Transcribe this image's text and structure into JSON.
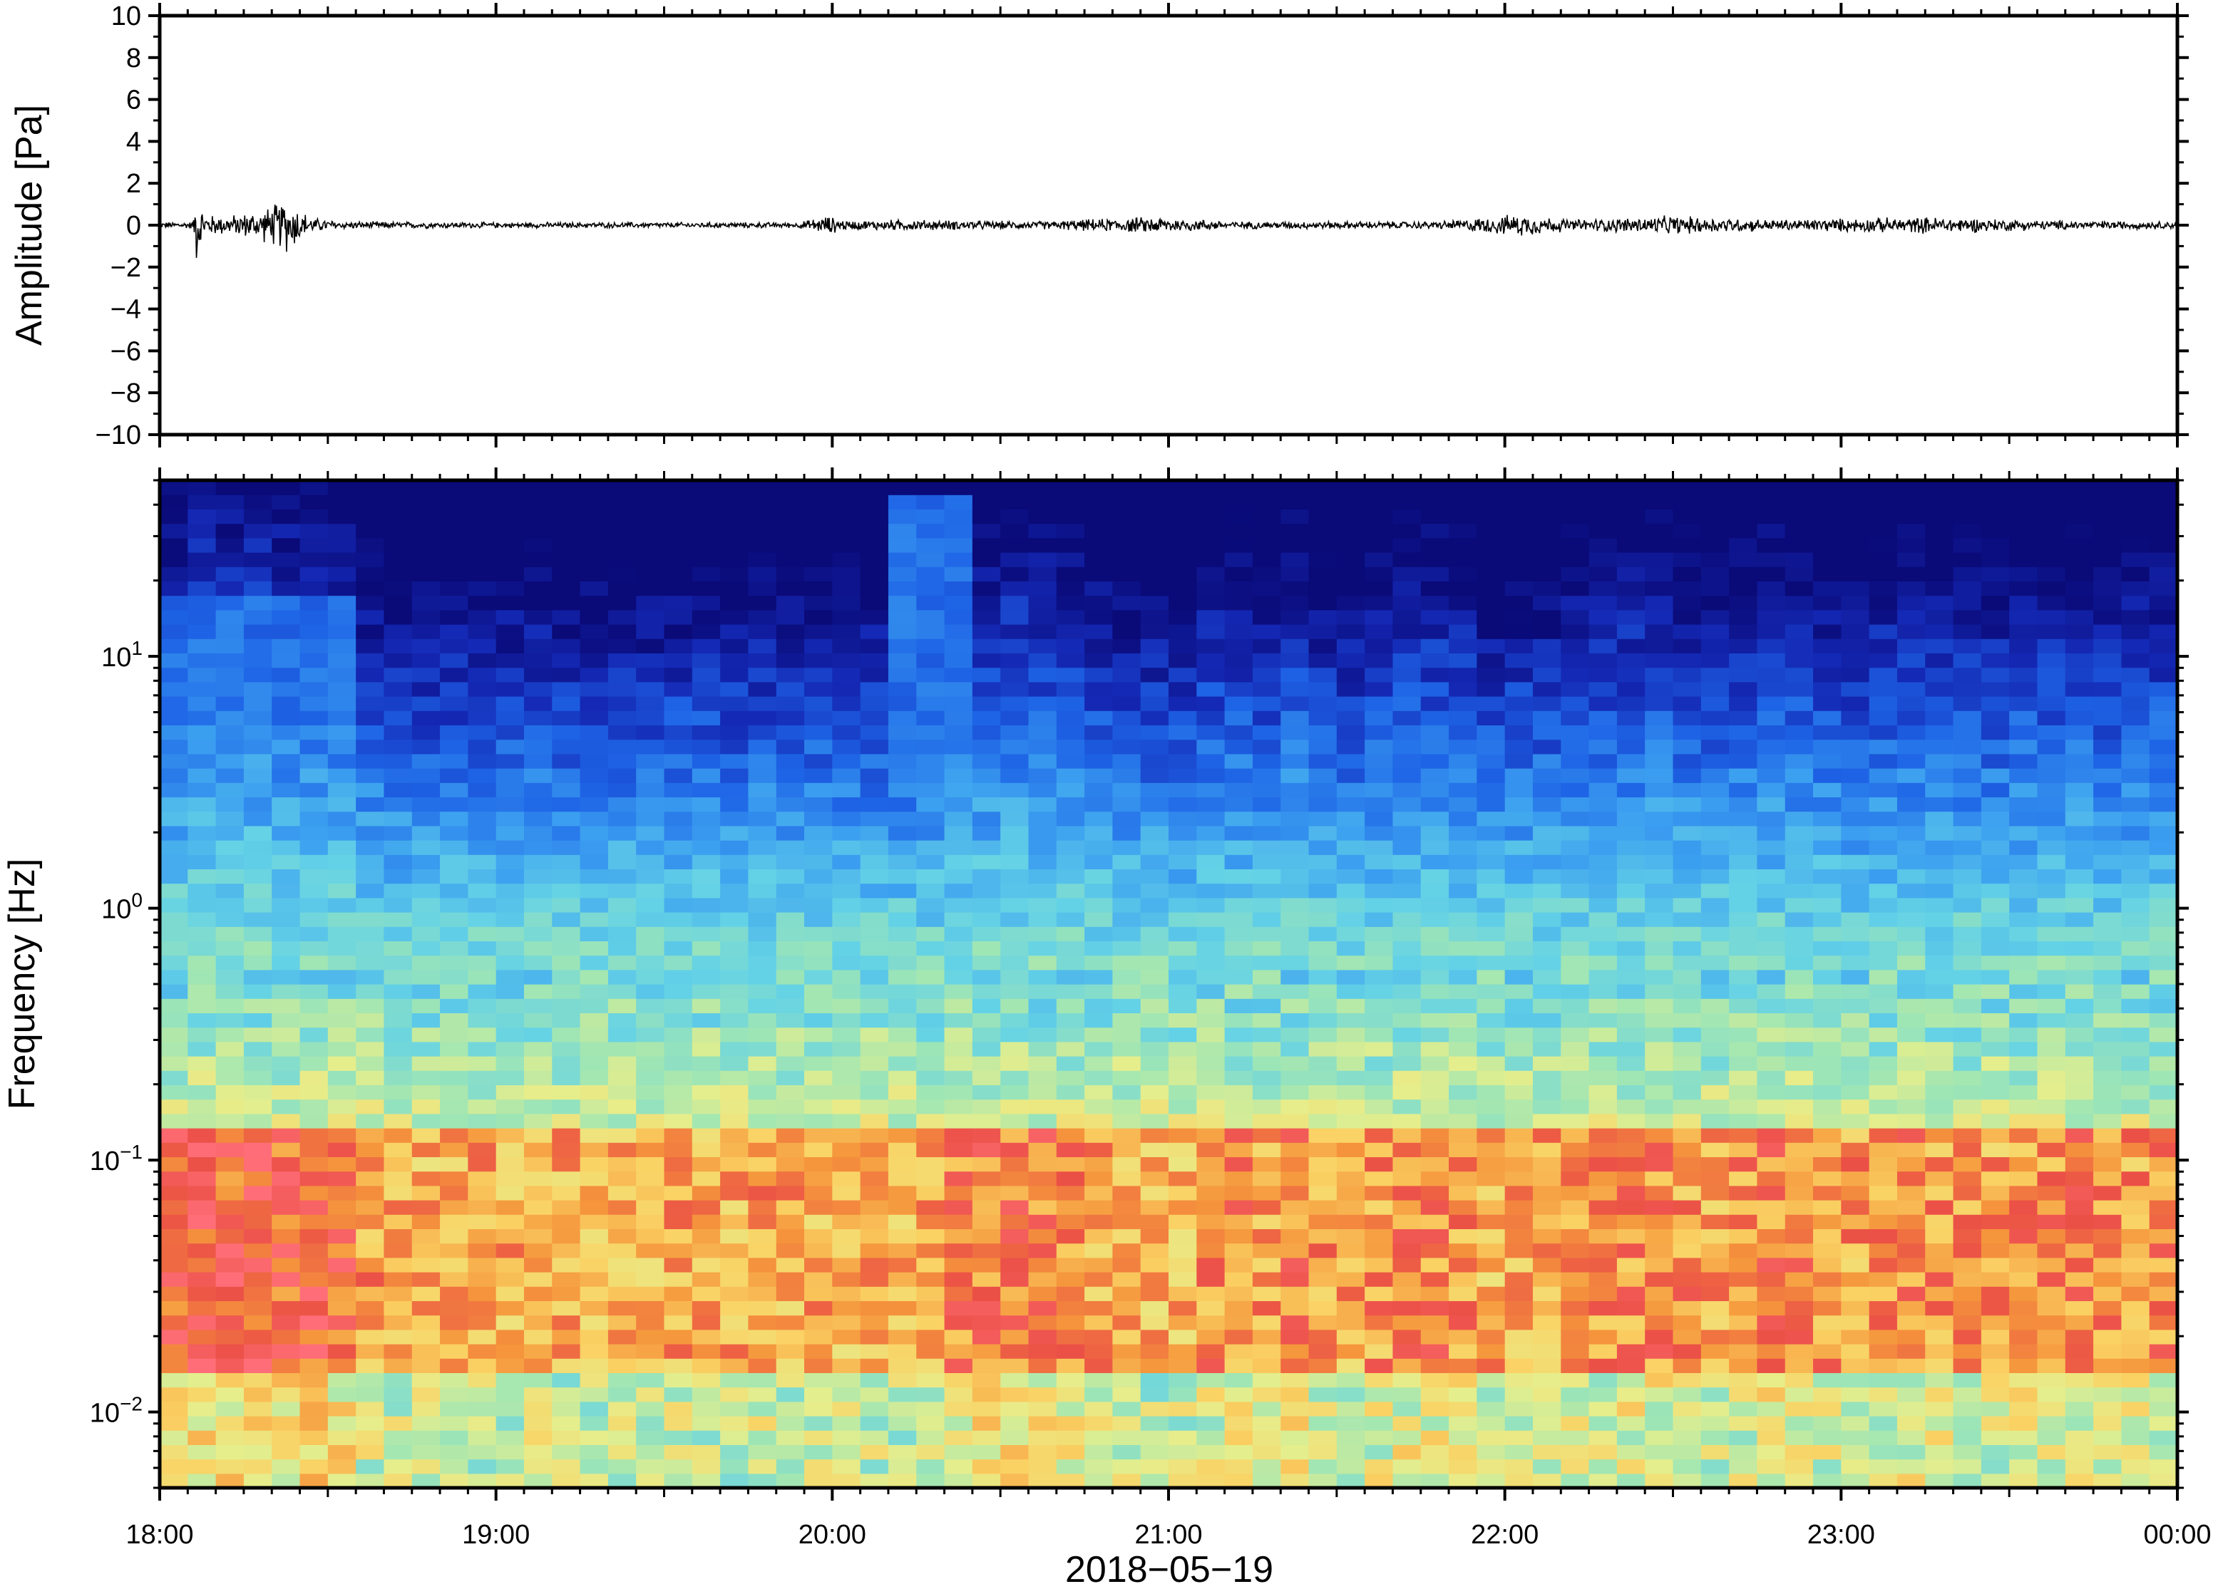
{
  "figure": {
    "date_label": "2018−05−19",
    "time_ticks": [
      "18:00",
      "19:00",
      "20:00",
      "21:00",
      "22:00",
      "23:00",
      "00:00"
    ]
  },
  "chart_data": [
    {
      "type": "line",
      "panel": "waveform",
      "ylabel": "Amplitude [Pa]",
      "ylim": [
        -10,
        10
      ],
      "yticks": [
        10,
        8,
        6,
        4,
        2,
        0,
        -2,
        -4,
        -6,
        -8,
        -10
      ],
      "ytick_labels": [
        "10",
        "8",
        "6",
        "4",
        "2",
        "0",
        "−2",
        "−4",
        "−6",
        "−8",
        "−10"
      ],
      "x_range_hours": [
        18.0,
        24.0
      ],
      "envelope": [
        {
          "t": 18.0,
          "a": 0.15
        },
        {
          "t": 18.1,
          "a": 0.2
        },
        {
          "t": 18.11,
          "a": 2.1
        },
        {
          "t": 18.13,
          "a": 0.6
        },
        {
          "t": 18.2,
          "a": 0.5
        },
        {
          "t": 18.3,
          "a": 0.8
        },
        {
          "t": 18.38,
          "a": 1.5
        },
        {
          "t": 18.45,
          "a": 0.4
        },
        {
          "t": 18.55,
          "a": 0.2
        },
        {
          "t": 19.0,
          "a": 0.15
        },
        {
          "t": 19.9,
          "a": 0.15
        },
        {
          "t": 19.98,
          "a": 0.5
        },
        {
          "t": 20.05,
          "a": 0.25
        },
        {
          "t": 20.2,
          "a": 0.3
        },
        {
          "t": 20.6,
          "a": 0.2
        },
        {
          "t": 20.96,
          "a": 0.45
        },
        {
          "t": 21.2,
          "a": 0.2
        },
        {
          "t": 21.8,
          "a": 0.2
        },
        {
          "t": 22.05,
          "a": 0.6
        },
        {
          "t": 22.2,
          "a": 0.3
        },
        {
          "t": 22.5,
          "a": 0.5
        },
        {
          "t": 22.8,
          "a": 0.3
        },
        {
          "t": 23.3,
          "a": 0.45
        },
        {
          "t": 23.6,
          "a": 0.25
        },
        {
          "t": 24.0,
          "a": 0.2
        }
      ]
    },
    {
      "type": "heatmap",
      "panel": "spectrogram",
      "ylabel": "Frequency [Hz]",
      "yscale": "log",
      "ylim": [
        0.005,
        50
      ],
      "yticks": [
        {
          "base": "10",
          "exp": "1",
          "value": 10
        },
        {
          "base": "10",
          "exp": "0",
          "value": 1
        },
        {
          "base": "10",
          "exp": "−1",
          "value": 0.1
        },
        {
          "base": "10",
          "exp": "−2",
          "value": 0.01
        }
      ],
      "x_range_hours": [
        18.0,
        24.0
      ],
      "time_bins": 72,
      "colormap": [
        "#0a0a78",
        "#1428b4",
        "#1e64e6",
        "#3ca0f0",
        "#64d2e6",
        "#a0e6b4",
        "#e6ee8c",
        "#fad264",
        "#f5963c",
        "#eb5046",
        "#ff6e78"
      ],
      "column_activity": [
        0.55,
        0.62,
        0.6,
        0.64,
        0.58,
        0.6,
        0.55,
        0.35,
        0.3,
        0.28,
        0.3,
        0.3,
        0.32,
        0.35,
        0.3,
        0.3,
        0.32,
        0.3,
        0.33,
        0.32,
        0.3,
        0.35,
        0.3,
        0.32,
        0.3,
        0.3,
        0.28,
        0.3,
        0.45,
        0.5,
        0.52,
        0.48,
        0.42,
        0.35,
        0.3,
        0.28,
        0.3,
        0.4,
        0.42,
        0.38,
        0.45,
        0.35,
        0.32,
        0.38,
        0.42,
        0.45,
        0.4,
        0.3,
        0.35,
        0.32,
        0.38,
        0.4,
        0.42,
        0.45,
        0.38,
        0.35,
        0.4,
        0.45,
        0.42,
        0.38,
        0.35,
        0.4,
        0.42,
        0.4,
        0.38,
        0.36,
        0.4,
        0.42,
        0.44,
        0.4,
        0.38,
        0.42
      ],
      "bursts": [
        {
          "t_start": 20.2,
          "t_end": 20.45,
          "f_top": 45
        },
        {
          "t_start": 18.0,
          "t_end": 18.55,
          "f_top": 18
        }
      ],
      "microbarom_band_hz": [
        0.02,
        0.12
      ],
      "background_band_hz": [
        0.15,
        0.6
      ]
    }
  ]
}
